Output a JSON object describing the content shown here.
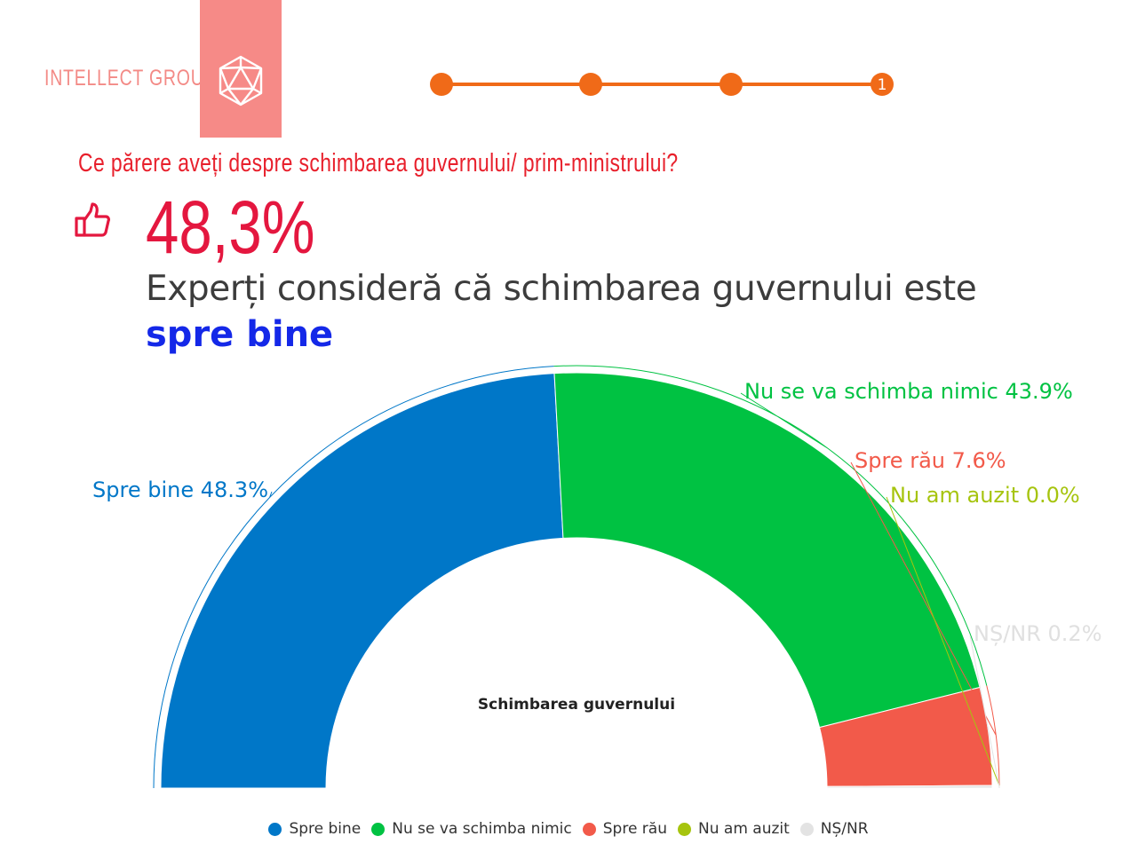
{
  "brand": {
    "name": "INTELLECT GROUP",
    "color": "#f38a86"
  },
  "progress": {
    "current_step": "1",
    "color": "#f06a18"
  },
  "question": "Ce părere aveți despre schimbarea guvernului/ prim-ministrului?",
  "highlight": {
    "percent": "48,3%",
    "text": "Experți consideră că schimbarea guvernului este",
    "emphasis": "spre bine",
    "icon": "thumbs-up-icon"
  },
  "chart_data": {
    "type": "pie",
    "subtype": "semi-donut",
    "center_label": "Schimbarea guvernului",
    "slices": [
      {
        "name": "Spre bine",
        "value": 48.3,
        "label": "Spre bine 48.3%",
        "color": "#0077c8"
      },
      {
        "name": "Nu se va schimba nimic",
        "value": 43.9,
        "label": "Nu se va schimba nimic 43.9%",
        "color": "#00c242"
      },
      {
        "name": "Spre rău",
        "value": 7.6,
        "label": "Spre rău 7.6%",
        "color": "#f25a4a"
      },
      {
        "name": "Nu am auzit",
        "value": 0.0,
        "label": "Nu am auzit 0.0%",
        "color": "#a6c40e"
      },
      {
        "name": "NȘ/NR",
        "value": 0.2,
        "label": "NȘ/NR 0.2%",
        "color": "#e3e3e3"
      }
    ],
    "legend_position": "bottom"
  }
}
